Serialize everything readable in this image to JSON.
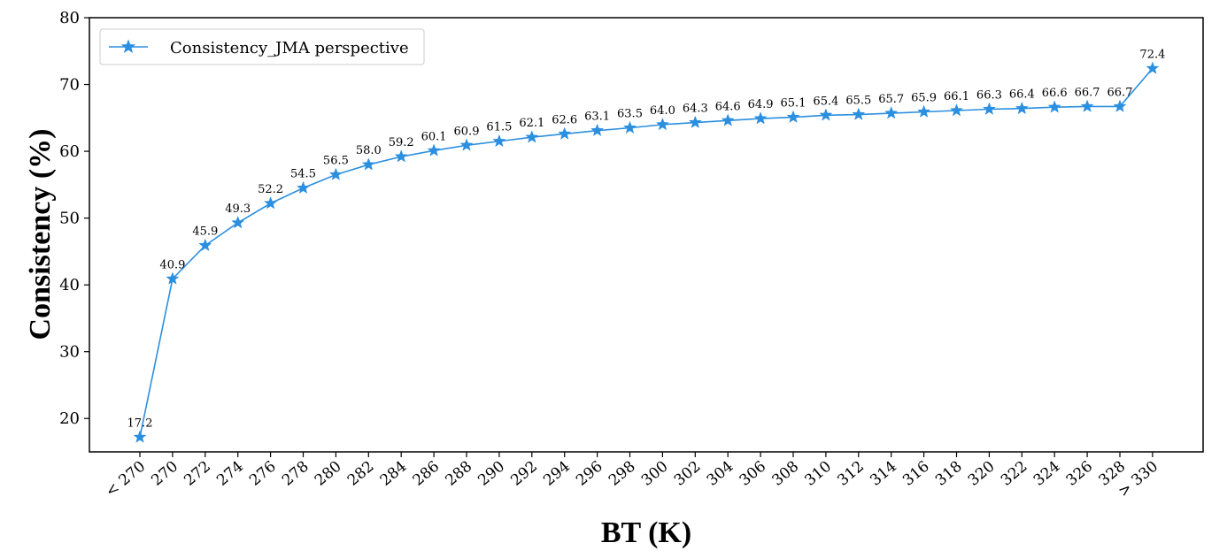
{
  "chart_data": {
    "type": "line",
    "xlabel": "BT (K)",
    "ylabel": "Consistency (%)",
    "categories": [
      "< 270",
      "270",
      "272",
      "274",
      "276",
      "278",
      "280",
      "282",
      "284",
      "286",
      "288",
      "290",
      "292",
      "294",
      "296",
      "298",
      "300",
      "302",
      "304",
      "306",
      "308",
      "310",
      "312",
      "314",
      "316",
      "318",
      "320",
      "322",
      "324",
      "326",
      "328",
      "> 330"
    ],
    "series": [
      {
        "name": "Consistency_JMA perspective",
        "values": [
          17.2,
          40.9,
          45.9,
          49.3,
          52.2,
          54.5,
          56.5,
          58.0,
          59.2,
          60.1,
          60.9,
          61.5,
          62.1,
          62.6,
          63.1,
          63.5,
          64.0,
          64.3,
          64.6,
          64.9,
          65.1,
          65.4,
          65.5,
          65.7,
          65.9,
          66.1,
          66.3,
          66.4,
          66.6,
          66.7,
          66.7,
          72.4
        ],
        "data_labels": [
          "17.2",
          "40.9",
          "45.9",
          "49.3",
          "52.2",
          "54.5",
          "56.5",
          "58.0",
          "59.2",
          "60.1",
          "60.9",
          "61.5",
          "62.1",
          "62.6",
          "63.1",
          "63.5",
          "64.0",
          "64.3",
          "64.6",
          "64.9",
          "65.1",
          "65.4",
          "65.5",
          "65.7",
          "65.9",
          "66.1",
          "66.3",
          "66.4",
          "66.6",
          "66.7",
          "66.7",
          "72.4"
        ],
        "color": "#2b8fe0",
        "marker": "star"
      }
    ],
    "ylim": [
      15,
      80
    ],
    "yticks": [
      "20",
      "30",
      "40",
      "50",
      "60",
      "70",
      "80"
    ],
    "grid": false,
    "legend_position": "top-left"
  }
}
